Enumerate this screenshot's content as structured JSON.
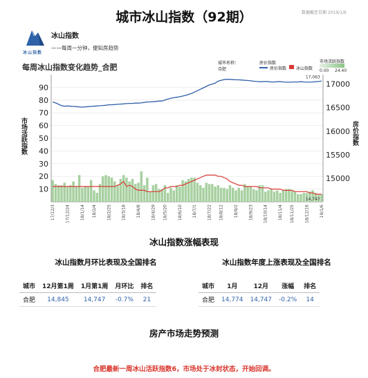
{
  "report": {
    "title": "城市冰山指数（92期）",
    "source_date": "数据截至日期    2019/1/6",
    "brand_name": "冰山指数",
    "brand_tagline": "——每周一分钟，便知房趋势",
    "logo_text": "冰山指数"
  },
  "chart_legend": {
    "city_label": "城市名称：",
    "city": "合肥",
    "line_label": "房价指数",
    "line_item": "房价指数",
    "bar_label": "冰山指数",
    "bar_item": "冰山指数",
    "range_label": "市场活跃指数",
    "range_min": "0.00",
    "range_max": "24.40"
  },
  "chart_data": {
    "type": "bar+line",
    "title": "每周冰山指数变化趋势_合肥",
    "ylabel_left": "市场活跃指数",
    "ylabel_right": "房价指数",
    "ylim_left": [
      0,
      100
    ],
    "ylim_right": [
      14500,
      17200
    ],
    "yticks_left": [
      10,
      20,
      30,
      40,
      50,
      60,
      70,
      80,
      90
    ],
    "yticks_right": [
      15000,
      15500,
      16000,
      16500,
      17000
    ],
    "x_tick_labels": [
      "17/12/3",
      "17/12/24",
      "18/1/14",
      "18/2/4",
      "18/2/25",
      "18/3/18",
      "18/4/8",
      "18/4/29",
      "18/5/20",
      "18/6/10",
      "18/7/1",
      "18/7/22",
      "18/8/12",
      "18/9/2",
      "18/9/23",
      "18/10/14",
      "18/11/4",
      "18/11/25",
      "18/12/16",
      "19/1/6"
    ],
    "bars": [
      17,
      14,
      13,
      13,
      15,
      12,
      13,
      16,
      12,
      21,
      11,
      12,
      12,
      17,
      9,
      7,
      14,
      20,
      21,
      20,
      19,
      16,
      13,
      18,
      21,
      19,
      16,
      18,
      14,
      15,
      24,
      13,
      19,
      8,
      13,
      14,
      10,
      10,
      13,
      7,
      11,
      9,
      13,
      12,
      17,
      16,
      18,
      19,
      19,
      15,
      13,
      11,
      15,
      14,
      14,
      12,
      13,
      11,
      11,
      10,
      13,
      11,
      9,
      11,
      9,
      14,
      12,
      12,
      10,
      9,
      13,
      13,
      8,
      9,
      10,
      8,
      9,
      7,
      9,
      10,
      10,
      9,
      8,
      6,
      6,
      7,
      7,
      8,
      9,
      7,
      6,
      6
    ],
    "red_line": [
      12,
      12,
      12,
      12,
      12,
      12,
      12,
      12,
      12,
      12,
      12,
      12,
      12,
      12,
      12,
      12,
      12,
      12,
      12,
      12,
      12,
      12,
      13,
      14,
      16,
      12,
      13,
      12,
      10,
      9,
      9,
      9,
      8,
      8,
      8,
      8,
      8,
      9,
      11,
      11,
      12,
      12,
      12,
      13,
      13,
      14,
      15,
      16,
      17,
      18,
      19,
      20,
      21,
      21,
      21,
      21,
      20,
      20,
      19,
      18,
      16,
      15,
      14,
      13,
      13,
      12,
      12,
      12,
      12,
      12,
      11,
      11,
      11,
      11,
      10,
      10,
      10,
      10,
      9,
      9,
      9,
      9,
      8,
      8,
      8,
      8,
      8,
      7,
      7,
      6,
      6,
      6
    ],
    "price_line": [
      16620,
      16600,
      16570,
      16540,
      16530,
      16535,
      16530,
      16525,
      16520,
      16515,
      16510,
      16515,
      16520,
      16525,
      16530,
      16535,
      16540,
      16545,
      16550,
      16560,
      16560,
      16565,
      16570,
      16575,
      16580,
      16585,
      16590,
      16590,
      16595,
      16595,
      16600,
      16610,
      16620,
      16620,
      16625,
      16630,
      16640,
      16640,
      16660,
      16680,
      16700,
      16710,
      16720,
      16730,
      16745,
      16760,
      16780,
      16800,
      16830,
      16860,
      16890,
      16920,
      16950,
      16980,
      17000,
      17020,
      17060,
      17080,
      17095,
      17100,
      17100,
      17095,
      17090,
      17090,
      17085,
      17080,
      17075,
      17070,
      17060,
      17055,
      17050,
      17050,
      17055,
      17050,
      17045,
      17045,
      17050,
      17050,
      17045,
      17040,
      17040,
      17040,
      17045,
      17045,
      17050,
      17045,
      17040,
      17040,
      17045,
      17050,
      17055,
      17063
    ],
    "end_labels": {
      "price": "17,063",
      "index": "14,747"
    }
  },
  "section1_title": "冰山指数涨幅表现",
  "monthly": {
    "title": "冰山指数月环比表现及全国排名",
    "headers": [
      "城市",
      "12月第1周",
      "1月第1周",
      "月环比",
      "排名"
    ],
    "row": [
      "合肥",
      "14,845",
      "14,747",
      "-0.7%",
      "21"
    ]
  },
  "yearly": {
    "title": "冰山指数年度上涨表现及全国排名",
    "headers": [
      "城市",
      "1月",
      "12月",
      "涨幅",
      "排名"
    ],
    "row": [
      "合肥",
      "14,774",
      "14,747",
      "-0.2%",
      "14"
    ]
  },
  "section2_title": "房产市场走势预测",
  "forecast": "合肥最新一周冰山活跃指数6，市场处于冰封状态，开始回调。",
  "colors": {
    "price_line": "#2e5fa8",
    "red_line": "#d93a34",
    "bar": "#a7d0a0",
    "forecast": "#d9352c"
  }
}
